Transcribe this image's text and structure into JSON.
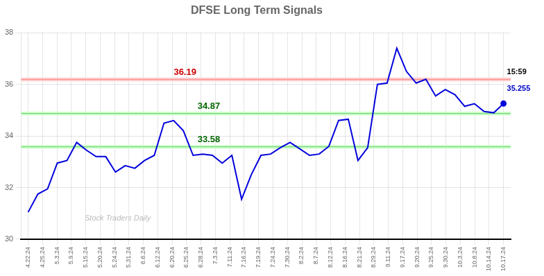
{
  "chart_data": {
    "type": "line",
    "title": "DFSE Long Term Signals",
    "color": "#0000dd",
    "grid": true,
    "legend": false,
    "x": [
      0,
      0.673469,
      1.346939,
      2.020408,
      2.693878,
      3.367347,
      4.040816,
      4.714286,
      5.387755,
      6.061224,
      6.734694,
      7.408163,
      8.081633,
      8.755102,
      9.428571,
      10.102041,
      10.77551,
      11.44898,
      12.122449,
      12.795918,
      13.469388,
      14.142857,
      14.816327,
      15.489796,
      16.163265,
      16.836735,
      17.510204,
      18.183673,
      18.857143,
      19.530612,
      20.204082,
      20.877551,
      21.55102,
      22.22449,
      22.897959,
      23.571429,
      24.244898,
      24.918367,
      25.591837,
      26.265306,
      26.938776,
      27.612245,
      28.285714,
      28.959184,
      29.632653,
      30.306122,
      30.979592,
      31.653061,
      32.326531,
      33
    ],
    "values": [
      31.05,
      31.75,
      31.95,
      32.95,
      33.05,
      33.75,
      33.45,
      33.2,
      33.2,
      32.6,
      32.85,
      32.75,
      33.05,
      33.25,
      34.5,
      34.6,
      34.2,
      33.25,
      33.3,
      33.25,
      32.95,
      33.25,
      31.55,
      32.5,
      33.25,
      33.3,
      33.55,
      33.75,
      33.5,
      33.25,
      33.3,
      33.6,
      34.6,
      34.65,
      33.05,
      33.55,
      36.0,
      36.05,
      37.4,
      36.5,
      36.05,
      36.2,
      35.55,
      35.8,
      35.6,
      35.15,
      35.25,
      34.95,
      34.9,
      35.255
    ],
    "xlim": [
      -0.5,
      33.5
    ],
    "xticks": [
      {
        "value": 0,
        "label": "4.22.24"
      },
      {
        "value": 1,
        "label": "4.25.24"
      },
      {
        "value": 2,
        "label": "5.3.24"
      },
      {
        "value": 3,
        "label": "5.9.24"
      },
      {
        "value": 4,
        "label": "5.15.24"
      },
      {
        "value": 5,
        "label": "5.20.24"
      },
      {
        "value": 6,
        "label": "5.24.24"
      },
      {
        "value": 7,
        "label": "5.31.24"
      },
      {
        "value": 8,
        "label": "6.6.24"
      },
      {
        "value": 9,
        "label": "6.12.24"
      },
      {
        "value": 10,
        "label": "6.20.24"
      },
      {
        "value": 11,
        "label": "6.25.24"
      },
      {
        "value": 12,
        "label": "6.28.24"
      },
      {
        "value": 13,
        "label": "7.3.24"
      },
      {
        "value": 14,
        "label": "7.11.24"
      },
      {
        "value": 15,
        "label": "7.16.24"
      },
      {
        "value": 16,
        "label": "7.19.24"
      },
      {
        "value": 17,
        "label": "7.24.24"
      },
      {
        "value": 18,
        "label": "7.30.24"
      },
      {
        "value": 19,
        "label": "8.2.24"
      },
      {
        "value": 20,
        "label": "8.7.24"
      },
      {
        "value": 21,
        "label": "8.12.24"
      },
      {
        "value": 22,
        "label": "8.16.24"
      },
      {
        "value": 23,
        "label": "8.21.24"
      },
      {
        "value": 24,
        "label": "8.29.24"
      },
      {
        "value": 25,
        "label": "9.11.24"
      },
      {
        "value": 26,
        "label": "9.17.24"
      },
      {
        "value": 27,
        "label": "9.20.24"
      },
      {
        "value": 28,
        "label": "9.25.24"
      },
      {
        "value": 29,
        "label": "9.30.24"
      },
      {
        "value": 30,
        "label": "10.3.24"
      },
      {
        "value": 31,
        "label": "10.8.24"
      },
      {
        "value": 32,
        "label": "10.14.24"
      },
      {
        "value": 33,
        "label": "10.17.24"
      }
    ],
    "ylim": [
      30,
      38
    ],
    "yticks": [
      30,
      32,
      34,
      36,
      38
    ],
    "annotations": {
      "hlines": [
        {
          "y": 36.19,
          "label": "36.19",
          "color": "#ff8888",
          "label_color": "#cc0000",
          "fill_color": "#ffcccc"
        },
        {
          "y": 34.87,
          "label": "34.87",
          "color": "#66cc66",
          "label_color": "#006600",
          "fill_color": "#ccffcc"
        },
        {
          "y": 33.58,
          "label": "33.58",
          "color": "#66cc66",
          "label_color": "#006600",
          "fill_color": "#ccffcc"
        }
      ],
      "last_time": "15:59",
      "last_value": "35.255",
      "last_value_color": "#0000cc",
      "watermark": "Stock Traders Daily",
      "watermark_color": "#bbbbbb"
    }
  }
}
